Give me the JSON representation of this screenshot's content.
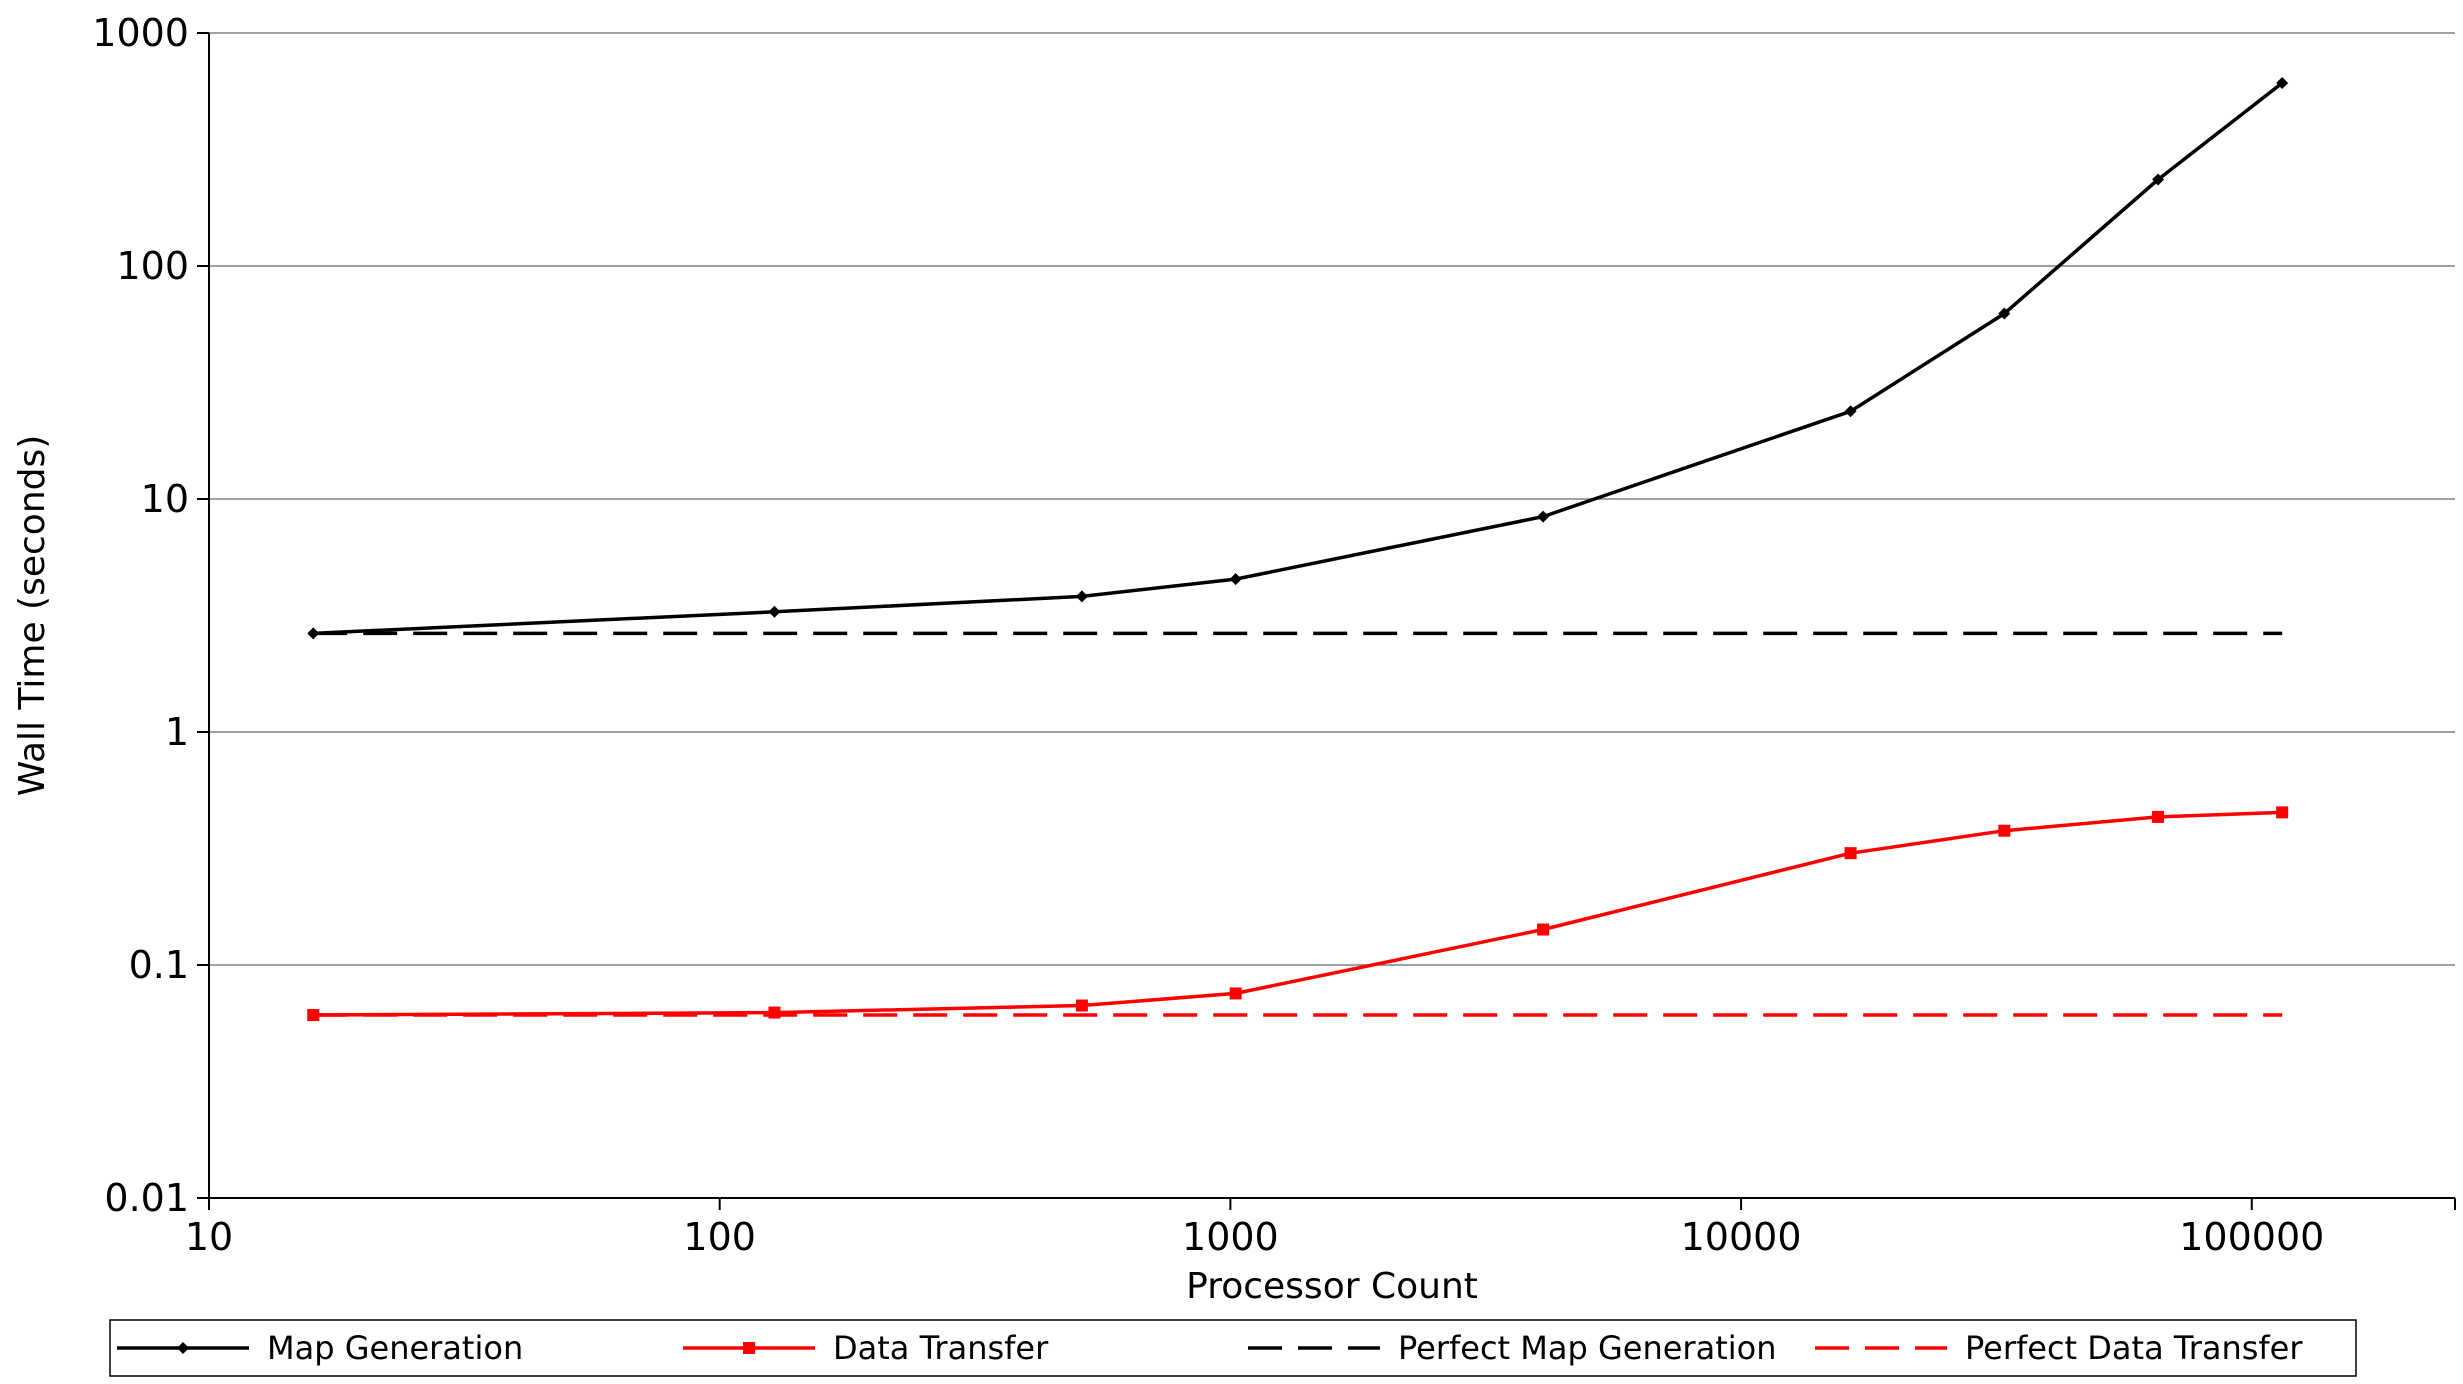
{
  "chart_data": {
    "type": "line",
    "title": "",
    "xlabel": "Processor Count",
    "ylabel": "Wall Time (seconds)",
    "x_scale": "log",
    "y_scale": "log",
    "xlim": [
      10,
      250000
    ],
    "ylim": [
      0.01,
      1000
    ],
    "x_ticks": [
      "10",
      "100",
      "1000",
      "10000",
      "100000"
    ],
    "y_ticks": [
      "0.01",
      "0.1",
      "1",
      "10",
      "100",
      "1000"
    ],
    "grid": "horizontal",
    "legend_position": "bottom",
    "x": [
      16,
      128,
      512,
      1024,
      4096,
      16384,
      32768,
      65536,
      114688
    ],
    "series": [
      {
        "name": "Map Generation",
        "color": "#000000",
        "style": "solid",
        "marker": "diamond",
        "values": [
          2.65,
          3.28,
          3.82,
          4.53,
          8.4,
          23.8,
          62.5,
          235,
          610
        ]
      },
      {
        "name": "Data Transfer",
        "color": "#ff0000",
        "style": "solid",
        "marker": "square",
        "values": [
          0.061,
          0.0625,
          0.067,
          0.0755,
          0.142,
          0.302,
          0.377,
          0.432,
          0.452
        ]
      },
      {
        "name": "Perfect Map Generation",
        "color": "#000000",
        "style": "dashed",
        "marker": "none",
        "values": [
          2.65,
          2.65,
          2.65,
          2.65,
          2.65,
          2.65,
          2.65,
          2.65,
          2.65
        ]
      },
      {
        "name": "Perfect Data Transfer",
        "color": "#ff0000",
        "style": "dashed",
        "marker": "none",
        "values": [
          0.061,
          0.061,
          0.061,
          0.061,
          0.061,
          0.061,
          0.061,
          0.061,
          0.061
        ]
      }
    ]
  }
}
